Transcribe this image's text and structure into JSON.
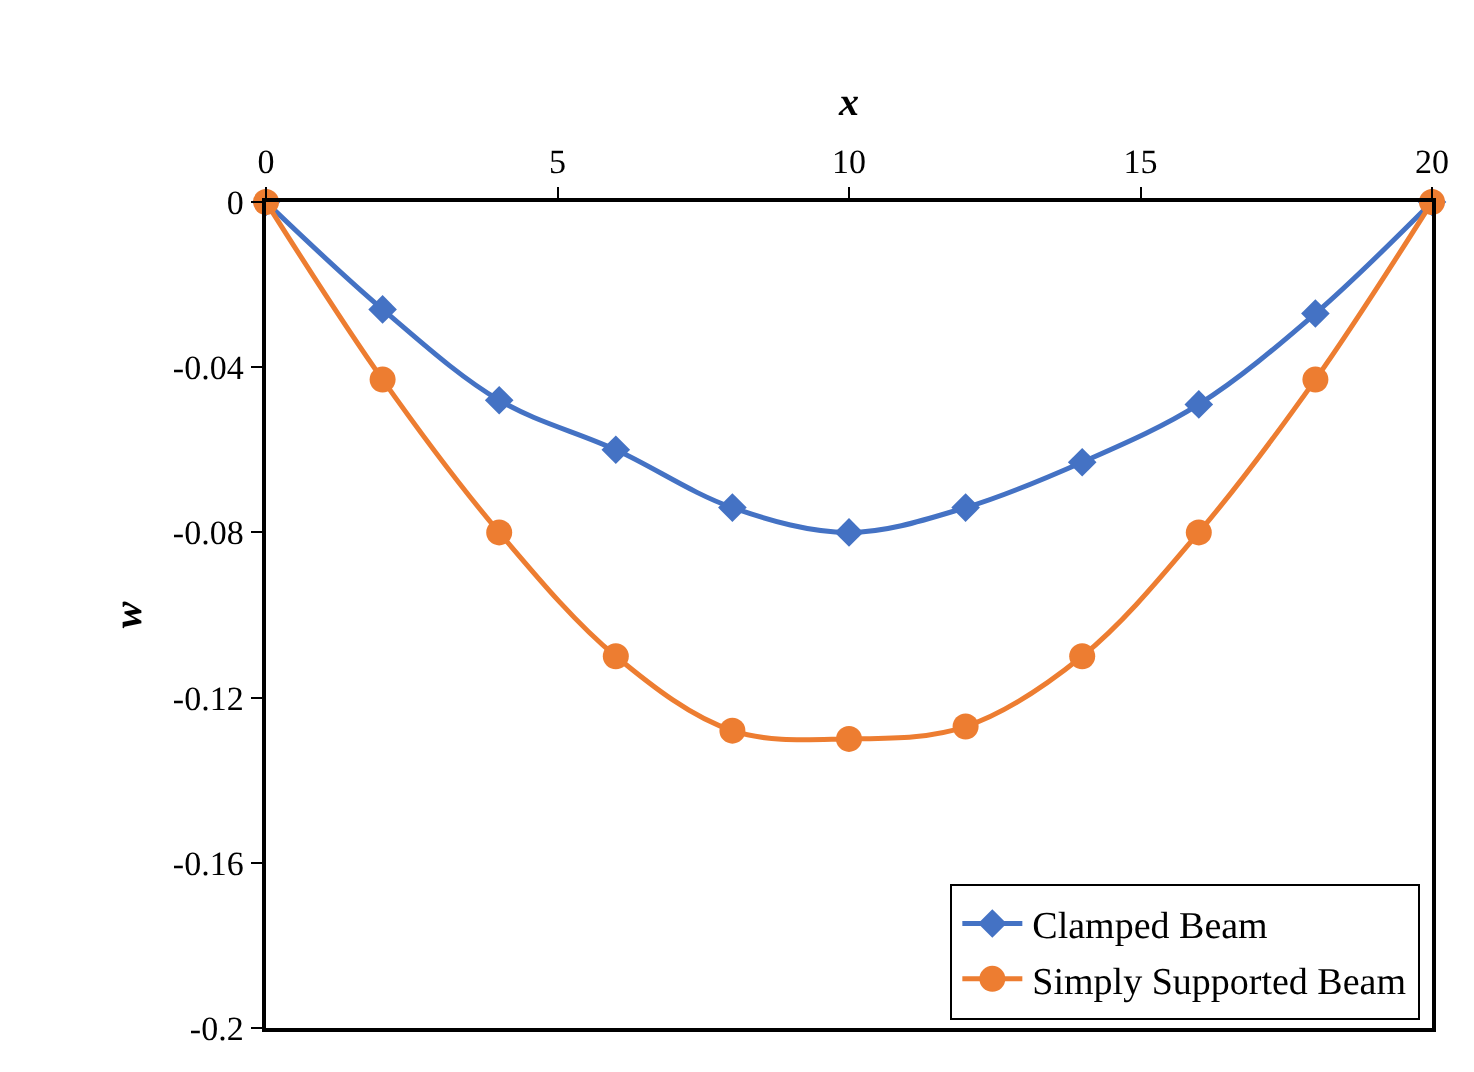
{
  "chart_data": {
    "type": "line",
    "xlabel": "x",
    "ylabel": "w",
    "x": [
      0,
      2,
      4,
      6,
      8,
      10,
      12,
      14,
      16,
      18,
      20
    ],
    "xlim": [
      0,
      20
    ],
    "xticks": [
      0,
      5,
      10,
      15,
      20
    ],
    "ylim": [
      -0.2,
      0
    ],
    "yticks": [
      0,
      -0.04,
      -0.08,
      -0.12,
      -0.16,
      -0.2
    ],
    "legend": "bottom right",
    "series": [
      {
        "name": "Clamped Beam",
        "color": "#4472c4",
        "marker": "diamond",
        "values": [
          0,
          -0.026,
          -0.048,
          -0.06,
          -0.074,
          -0.08,
          -0.074,
          -0.063,
          -0.049,
          -0.027,
          0
        ]
      },
      {
        "name": "Simply Supported Beam",
        "color": "#ed7d31",
        "marker": "circle",
        "values": [
          0,
          -0.043,
          -0.08,
          -0.11,
          -0.128,
          -0.13,
          -0.127,
          -0.11,
          -0.08,
          -0.043,
          0
        ]
      }
    ]
  }
}
